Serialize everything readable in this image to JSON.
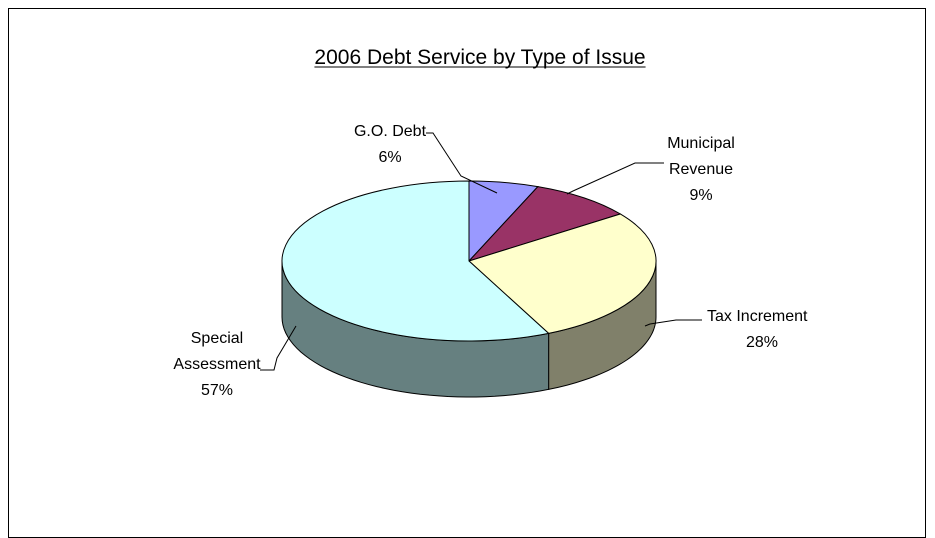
{
  "chart_data": {
    "type": "pie",
    "title": "2006 Debt Service by Type of Issue",
    "slices": [
      {
        "label": "G.O. Debt",
        "label_lines": [
          "G.O. Debt"
        ],
        "value": 6,
        "value_label": "6%",
        "color": "#9999FF",
        "side_color": "#6B6BB3"
      },
      {
        "label": "Municipal Revenue",
        "label_lines": [
          "Municipal",
          "Revenue"
        ],
        "value": 9,
        "value_label": "9%",
        "color": "#993366",
        "side_color": "#6B2447"
      },
      {
        "label": "Tax Increment",
        "label_lines": [
          "Tax Increment"
        ],
        "value": 28,
        "value_label": "28%",
        "color": "#FFFFCC",
        "side_color": "#80806A"
      },
      {
        "label": "Special Assessment",
        "label_lines": [
          "Special",
          "Assessment"
        ],
        "value": 57,
        "value_label": "57%",
        "color": "#CCFFFF",
        "side_color": "#668080"
      }
    ],
    "legend": "none",
    "labels": "outside-with-leader-lines"
  }
}
